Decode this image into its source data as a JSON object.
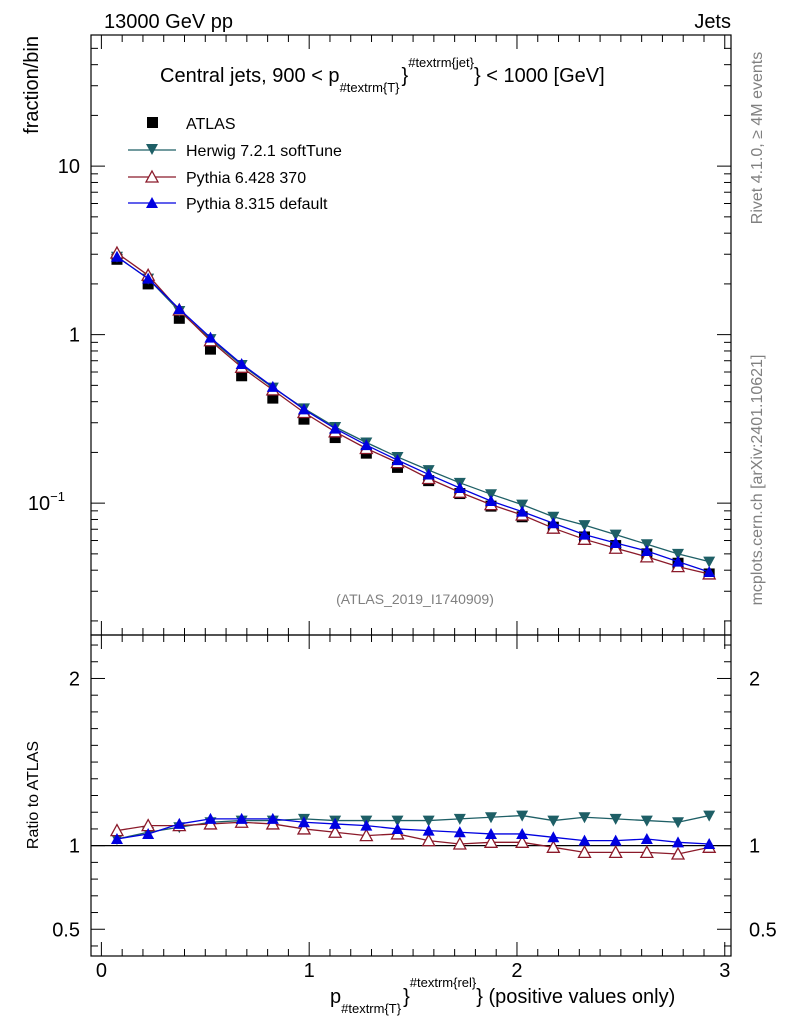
{
  "header": {
    "left": "13000 GeV pp",
    "right": "Jets"
  },
  "side": {
    "top": "Rivet 4.1.0, ≥ 4M events",
    "bottom": "mcplots.cern.ch [arXiv:2401.10621]"
  },
  "chart_data": [
    {
      "type": "line",
      "title": "Central jets, 900 < p",
      "title_sub": "#textrm{T}",
      "title_sup": "#textrm{jet}",
      "title_tail": "} < 1000 [GeV]",
      "ylabel": "fraction/bin",
      "yscale": "log",
      "ylim": [
        0.0165,
        60
      ],
      "xlim": [
        -0.05,
        3.03
      ],
      "yticks": [
        {
          "value": 10,
          "label": "10"
        },
        {
          "value": 1,
          "label": "1"
        },
        {
          "value": 0.1,
          "label": "10",
          "exp": "−1"
        }
      ],
      "analysis_label": "(ATLAS_2019_I1740909)",
      "x": [
        0.075,
        0.225,
        0.375,
        0.525,
        0.675,
        0.825,
        0.975,
        1.125,
        1.275,
        1.425,
        1.575,
        1.725,
        1.875,
        2.025,
        2.175,
        2.325,
        2.475,
        2.625,
        2.775,
        2.925
      ],
      "series": [
        {
          "name": "ATLAS",
          "marker": "square",
          "color": "#000000",
          "values": [
            2.8,
            2.0,
            1.25,
            0.82,
            0.57,
            0.42,
            0.315,
            0.245,
            0.198,
            0.163,
            0.136,
            0.114,
            0.096,
            0.083,
            0.072,
            0.063,
            0.056,
            0.05,
            0.044,
            0.038
          ]
        },
        {
          "name": "Herwig 7.2.1 softTune",
          "marker": "triangle-down",
          "color": "#1e5f66",
          "values": [
            2.9,
            2.15,
            1.38,
            0.94,
            0.66,
            0.485,
            0.365,
            0.283,
            0.229,
            0.188,
            0.157,
            0.132,
            0.113,
            0.098,
            0.083,
            0.074,
            0.065,
            0.057,
            0.05,
            0.045
          ]
        },
        {
          "name": "Pythia 6.428 370",
          "marker": "triangle-open",
          "color": "#8b1a2a",
          "values": [
            3.05,
            2.25,
            1.4,
            0.92,
            0.64,
            0.47,
            0.345,
            0.265,
            0.211,
            0.174,
            0.14,
            0.116,
            0.098,
            0.085,
            0.071,
            0.061,
            0.054,
            0.048,
            0.042,
            0.038
          ]
        },
        {
          "name": "Pythia 8.315 default",
          "marker": "triangle-up",
          "color": "#0000e0",
          "values": [
            2.9,
            2.15,
            1.42,
            0.96,
            0.67,
            0.49,
            0.36,
            0.277,
            0.221,
            0.18,
            0.148,
            0.123,
            0.103,
            0.089,
            0.076,
            0.065,
            0.058,
            0.052,
            0.045,
            0.039
          ]
        }
      ]
    },
    {
      "type": "line",
      "ylabel": "Ratio to ATLAS",
      "xlabel": "p",
      "xlabel_sub": "#textrm{T}",
      "xlabel_sup": "#textrm{rel}",
      "xlabel_tail": "} (positive values only)",
      "xlim": [
        -0.05,
        3.03
      ],
      "ylim": [
        0.34,
        2.26
      ],
      "reference": 1,
      "yticks": [
        {
          "value": 2,
          "label": "2"
        },
        {
          "value": 1,
          "label": "1"
        },
        {
          "value": 0.5,
          "label": "0.5"
        }
      ],
      "xticks": [
        {
          "value": 0,
          "label": "0"
        },
        {
          "value": 1,
          "label": "1"
        },
        {
          "value": 2,
          "label": "2"
        },
        {
          "value": 3,
          "label": "3"
        }
      ],
      "x": [
        0.075,
        0.225,
        0.375,
        0.525,
        0.675,
        0.825,
        0.975,
        1.125,
        1.275,
        1.425,
        1.575,
        1.725,
        1.875,
        2.025,
        2.175,
        2.325,
        2.475,
        2.625,
        2.775,
        2.925
      ],
      "series": [
        {
          "name": "Herwig 7.2.1 softTune",
          "marker": "triangle-down",
          "color": "#1e5f66",
          "values": [
            1.04,
            1.08,
            1.11,
            1.14,
            1.15,
            1.15,
            1.16,
            1.15,
            1.15,
            1.15,
            1.15,
            1.16,
            1.17,
            1.18,
            1.15,
            1.17,
            1.16,
            1.15,
            1.14,
            1.18
          ]
        },
        {
          "name": "Pythia 6.428 370",
          "marker": "triangle-open",
          "color": "#8b1a2a",
          "values": [
            1.09,
            1.12,
            1.12,
            1.13,
            1.14,
            1.13,
            1.1,
            1.08,
            1.06,
            1.07,
            1.03,
            1.01,
            1.02,
            1.02,
            0.99,
            0.96,
            0.96,
            0.96,
            0.95,
            0.99
          ]
        },
        {
          "name": "Pythia 8.315 default",
          "marker": "triangle-up",
          "color": "#0000e0",
          "values": [
            1.04,
            1.07,
            1.13,
            1.16,
            1.16,
            1.16,
            1.14,
            1.13,
            1.12,
            1.1,
            1.09,
            1.08,
            1.07,
            1.07,
            1.05,
            1.03,
            1.03,
            1.04,
            1.02,
            1.01
          ]
        }
      ]
    }
  ]
}
